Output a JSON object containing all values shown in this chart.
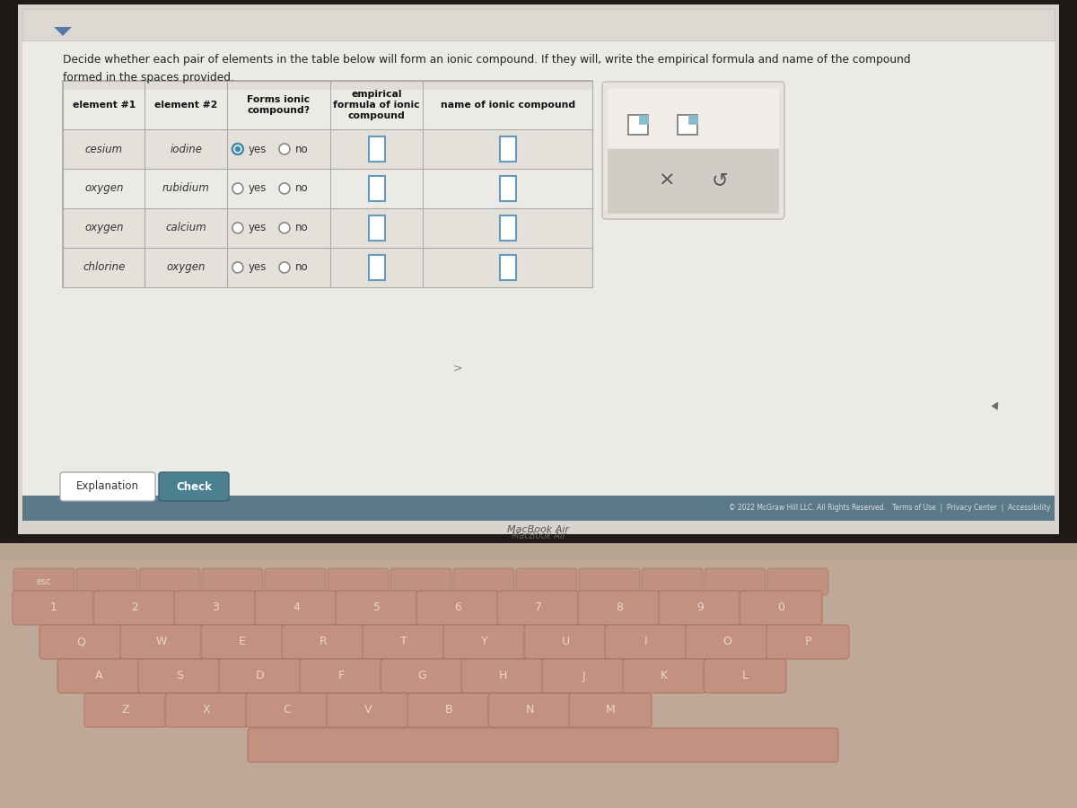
{
  "title_text_line1": "Decide whether each pair of elements in the table below will form an ionic compound. If they will, write the empirical formula and name of the compound",
  "title_text_line2": "formed in the spaces provided.",
  "bg_color": "#b8a898",
  "outer_laptop_color": "#c8b8a8",
  "screen_bezel_color": "#2a2520",
  "screen_bg": "#d8d3cc",
  "page_bg": "#eceae6",
  "footer_bar_color": "#5a7a8a",
  "keyboard_body_color": "#c8b0a0",
  "key_color": "#c4988a",
  "key_edge_color": "#b08878",
  "hinge_color": "#b8a898",
  "macbook_text_color": "#888070",
  "col_headers": [
    "element #1",
    "element #2",
    "Forms ionic\ncompound?",
    "empirical\nformula of ionic\ncompound",
    "name of ionic compound"
  ],
  "row_data": [
    [
      "cesium",
      "iodine",
      "yes"
    ],
    [
      "oxygen",
      "rubidium",
      "none"
    ],
    [
      "oxygen",
      "calcium",
      "none"
    ],
    [
      "chlorine",
      "oxygen",
      "none"
    ]
  ],
  "explanation_btn": "Explanation",
  "check_btn": "Check",
  "check_btn_color": "#4a8090",
  "copyright_text": "© 2022 McGraw Hill LLC. All Rights Reserved.   Terms of Use  |  Privacy Center  |  Accessibility",
  "macbook_text": "MacBook Air",
  "title_fontsize": 8.8,
  "header_fontsize": 7.8,
  "cell_fontsize": 8.5,
  "table_border_color": "#aaaaaa",
  "header_row_bg": "#e0dcd6",
  "data_row_bg1": "#eceae6",
  "data_row_bg2": "#e4e0da",
  "radio_selected_color": "#4488aa",
  "input_box_color": "#6699bb",
  "panel_bg": "#e8e3dc",
  "panel_bottom_bg": "#d0ccc6",
  "icon_color": "#88aacc"
}
